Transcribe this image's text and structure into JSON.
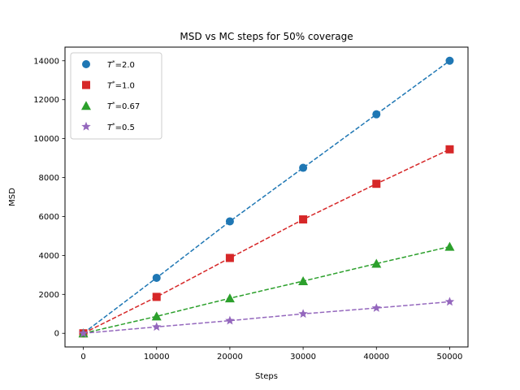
{
  "chart_data": {
    "type": "scatter",
    "title": "MSD vs MC steps for 50% coverage",
    "xlabel": "Steps",
    "ylabel": "MSD",
    "xlim": [
      -2500,
      52500
    ],
    "ylim": [
      -700,
      14700
    ],
    "xticks": [
      0,
      10000,
      20000,
      30000,
      40000,
      50000
    ],
    "yticks": [
      0,
      2000,
      4000,
      6000,
      8000,
      10000,
      12000,
      14000
    ],
    "grid": false,
    "legend_position": "upper-left",
    "x": [
      0,
      10000,
      20000,
      30000,
      40000,
      50000
    ],
    "series": [
      {
        "name_base": "T",
        "name_sup": "*",
        "name_value": "=2.0",
        "color": "#1f77b4",
        "marker": "circle",
        "fit": "dashed",
        "values": [
          0,
          2850,
          5750,
          8500,
          11250,
          14000
        ]
      },
      {
        "name_base": "T",
        "name_sup": "*",
        "name_value": "=1.0",
        "color": "#d62728",
        "marker": "square",
        "fit": "dashed",
        "values": [
          0,
          1870,
          3870,
          5850,
          7680,
          9450
        ]
      },
      {
        "name_base": "T",
        "name_sup": "*",
        "name_value": "=0.67",
        "color": "#2ca02c",
        "marker": "triangle",
        "fit": "dashed",
        "values": [
          0,
          870,
          1800,
          2680,
          3580,
          4450
        ]
      },
      {
        "name_base": "T",
        "name_sup": "*",
        "name_value": "=0.5",
        "color": "#9467bd",
        "marker": "star",
        "fit": "dashed",
        "values": [
          0,
          330,
          650,
          1000,
          1300,
          1620
        ]
      }
    ]
  }
}
